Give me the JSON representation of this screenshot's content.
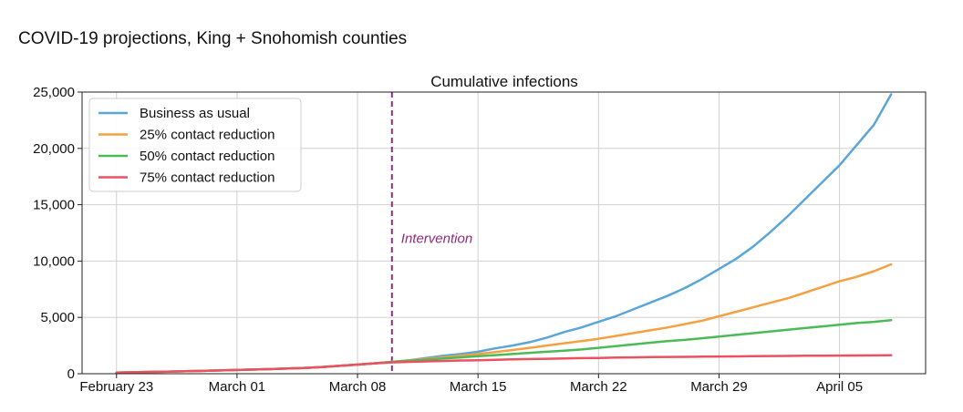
{
  "page_title": "COVID-19 projections, King + Snohomish counties",
  "chart_data": {
    "type": "line",
    "title": "Cumulative infections",
    "xlabel": "",
    "ylabel": "",
    "x_tick_labels": [
      "February 23",
      "March 01",
      "March 08",
      "March 15",
      "March 22",
      "March 29",
      "April 05"
    ],
    "x_tick_days": [
      0,
      7,
      14,
      21,
      28,
      35,
      42
    ],
    "xlim_days": [
      -2,
      47
    ],
    "ylim": [
      0,
      25000
    ],
    "y_ticks": [
      0,
      5000,
      10000,
      15000,
      20000,
      25000
    ],
    "y_tick_labels": [
      "0",
      "5,000",
      "10,000",
      "15,000",
      "20,000",
      "25,000"
    ],
    "grid": true,
    "legend_position": "upper-left",
    "annotation": {
      "label": "Intervention",
      "x_day": 16,
      "color": "#8e2c7e"
    },
    "x_days": [
      0,
      1,
      2,
      3,
      4,
      5,
      6,
      7,
      8,
      9,
      10,
      11,
      12,
      13,
      14,
      15,
      16,
      17,
      18,
      19,
      20,
      21,
      22,
      23,
      24,
      25,
      26,
      27,
      28,
      29,
      30,
      31,
      32,
      33,
      34,
      35,
      36,
      37,
      38,
      39,
      40,
      41,
      42,
      43,
      44,
      45
    ],
    "series": [
      {
        "name": "Business as usual",
        "color": "#5aa6d6",
        "values": [
          100,
          130,
          160,
          190,
          220,
          250,
          290,
          330,
          370,
          410,
          460,
          520,
          600,
          700,
          810,
          920,
          1050,
          1200,
          1400,
          1600,
          1750,
          1950,
          2250,
          2500,
          2800,
          3200,
          3700,
          4100,
          4600,
          5100,
          5700,
          6300,
          6900,
          7600,
          8400,
          9300,
          10200,
          11300,
          12600,
          14000,
          15500,
          17000,
          18500,
          20300,
          22100,
          24800
        ]
      },
      {
        "name": "25% contact reduction",
        "color": "#f5a142",
        "values": [
          100,
          130,
          160,
          190,
          220,
          250,
          290,
          330,
          370,
          410,
          460,
          520,
          600,
          700,
          810,
          920,
          1050,
          1180,
          1320,
          1460,
          1600,
          1750,
          1920,
          2100,
          2300,
          2500,
          2700,
          2900,
          3100,
          3350,
          3600,
          3850,
          4100,
          4400,
          4700,
          5100,
          5500,
          5900,
          6300,
          6700,
          7200,
          7700,
          8200,
          8600,
          9100,
          9700
        ]
      },
      {
        "name": "50% contact reduction",
        "color": "#4cbb57",
        "values": [
          100,
          130,
          160,
          190,
          220,
          250,
          290,
          330,
          370,
          410,
          460,
          520,
          600,
          700,
          810,
          920,
          1050,
          1150,
          1250,
          1350,
          1450,
          1550,
          1650,
          1750,
          1850,
          1950,
          2050,
          2150,
          2300,
          2450,
          2600,
          2750,
          2900,
          3000,
          3150,
          3300,
          3450,
          3600,
          3750,
          3900,
          4050,
          4200,
          4350,
          4500,
          4600,
          4750
        ]
      },
      {
        "name": "75% contact reduction",
        "color": "#ec5162",
        "values": [
          100,
          130,
          160,
          190,
          220,
          250,
          290,
          330,
          370,
          410,
          460,
          520,
          600,
          700,
          810,
          920,
          1000,
          1050,
          1090,
          1130,
          1170,
          1200,
          1240,
          1270,
          1300,
          1330,
          1350,
          1380,
          1400,
          1430,
          1450,
          1470,
          1490,
          1500,
          1510,
          1530,
          1540,
          1560,
          1570,
          1580,
          1590,
          1600,
          1610,
          1620,
          1630,
          1640
        ]
      }
    ]
  }
}
